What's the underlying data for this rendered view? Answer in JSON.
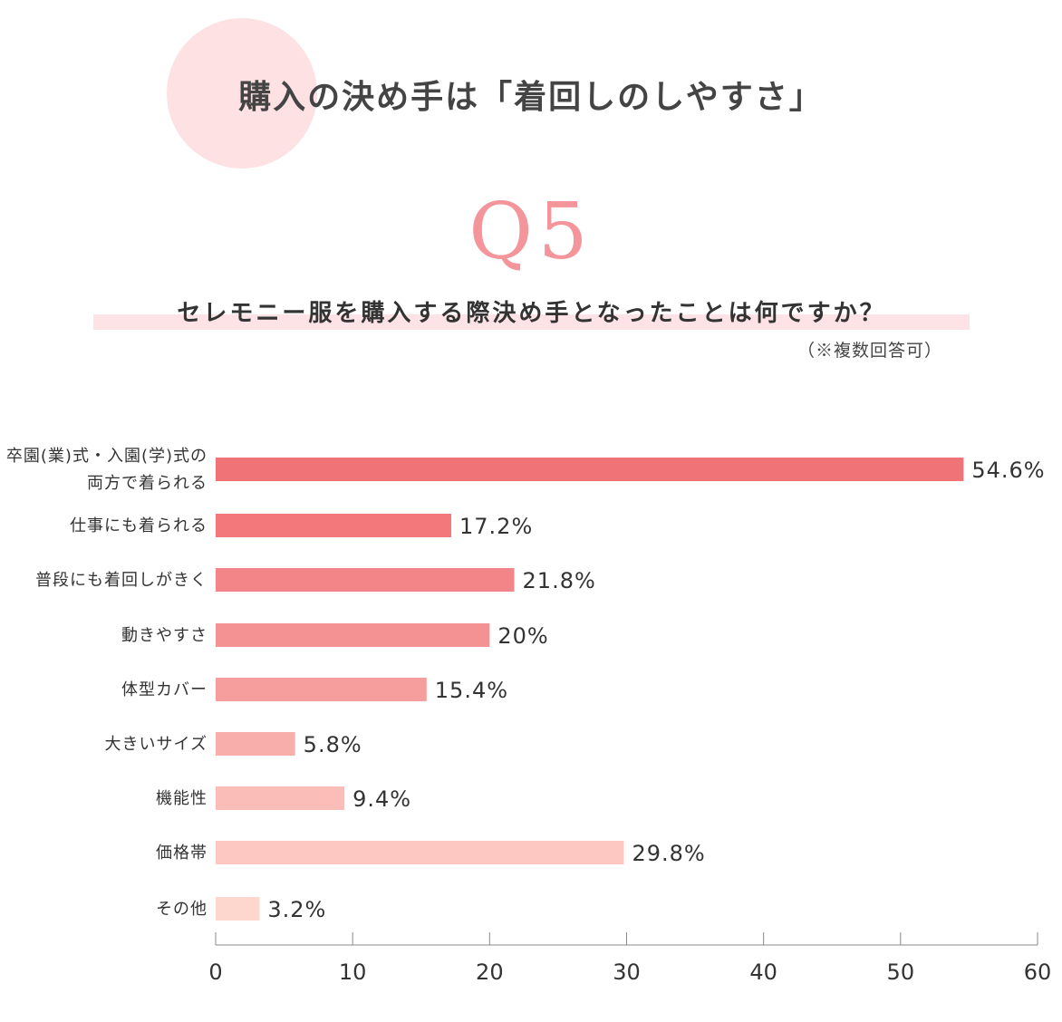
{
  "header": {
    "title": "購入の決め手は「着回しのしやすさ」"
  },
  "question": {
    "number": "Q5",
    "text": "セレモニー服を購入する際決め手となったことは何ですか？",
    "note": "（※複数回答可）"
  },
  "chart_data": {
    "type": "bar",
    "orientation": "horizontal",
    "categories": [
      [
        "卒園(業)式・入園(学)式の",
        "両方で着られる"
      ],
      [
        "仕事にも着られる"
      ],
      [
        "普段にも着回しがきく"
      ],
      [
        "動きやすさ"
      ],
      [
        "体型カバー"
      ],
      [
        "大きいサイズ"
      ],
      [
        "機能性"
      ],
      [
        "価格帯"
      ],
      [
        "その他"
      ]
    ],
    "values": [
      54.6,
      17.2,
      21.8,
      20,
      15.4,
      5.8,
      9.4,
      29.8,
      3.2
    ],
    "value_labels": [
      "54.6%",
      "17.2%",
      "21.8%",
      "20%",
      "15.4%",
      "5.8%",
      "9.4%",
      "29.8%",
      "3.2%"
    ],
    "colors": [
      "#f07377",
      "#f2787c",
      "#f38588",
      "#f49192",
      "#f69e9e",
      "#f8aeaa",
      "#fabdb7",
      "#fcc8c1",
      "#fdd6ce"
    ],
    "xlim": [
      0,
      60
    ],
    "xticks": [
      0,
      10,
      20,
      30,
      40,
      50,
      60
    ],
    "grid": false,
    "legend": "none"
  },
  "colors": {
    "accent": "#f3959a",
    "circle": "#fde1e3",
    "band": "#fde3e5"
  }
}
